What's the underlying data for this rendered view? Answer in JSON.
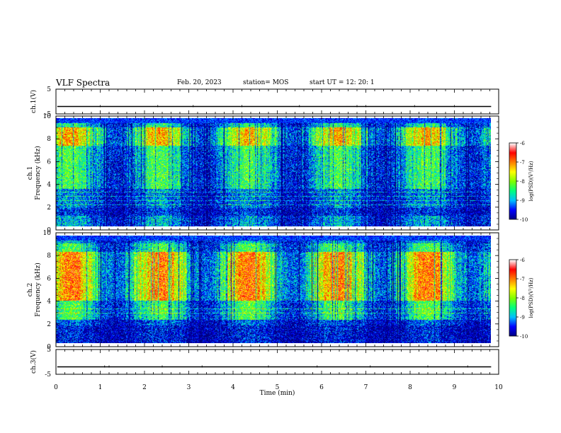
{
  "header": {
    "title": "VLF Spectra",
    "date": "Feb. 20, 2023",
    "station": "station= MOS",
    "start": "start  UT =   12: 20: 1"
  },
  "chart_data": [
    {
      "type": "line",
      "panel": "ch1-voltage",
      "ylabel": "ch.1(V)",
      "ylim": [
        -5,
        5
      ],
      "yticks": [
        5,
        -5
      ],
      "xlim": [
        0,
        10
      ],
      "series": [
        {
          "values_description_level": -2
        }
      ]
    },
    {
      "type": "heatmap",
      "panel": "ch1-spectrogram",
      "ylabel_top": "ch.1",
      "ylabel": "Frequency (kHz)",
      "ylim": [
        0,
        10
      ],
      "yticks": [
        0,
        2,
        4,
        6,
        8,
        10
      ],
      "xlim": [
        0,
        10
      ],
      "data_end_min": 9.83,
      "colorbar": {
        "label": "log(PSD)(V²/Hz)",
        "ticks": [
          -10,
          -9,
          -8,
          -7,
          -6
        ],
        "range": [
          -10,
          -6
        ]
      }
    },
    {
      "type": "heatmap",
      "panel": "ch2-spectrogram",
      "ylabel_top": "ch.2",
      "ylabel": "Frequency (kHz)",
      "ylim": [
        0,
        10
      ],
      "yticks": [
        0,
        2,
        4,
        6,
        8,
        10
      ],
      "xlim": [
        0,
        10
      ],
      "data_end_min": 9.83,
      "colorbar": {
        "label": "log(PSD)(V²/Hz)",
        "ticks": [
          -10,
          -9,
          -8,
          -7,
          -6
        ],
        "range": [
          -10,
          -6
        ]
      }
    },
    {
      "type": "line",
      "panel": "ch3-voltage",
      "ylabel": "ch.3(V)",
      "ylim": [
        -5,
        5
      ],
      "yticks": [
        5,
        -5
      ],
      "xlim": [
        0,
        10
      ],
      "xlabel": "Time  (min)",
      "xticks": [
        0,
        1,
        2,
        3,
        4,
        5,
        6,
        7,
        8,
        9,
        10
      ],
      "series": [
        {
          "values_description_level": -2
        }
      ]
    }
  ],
  "colors": {
    "colormap": [
      "#00007f",
      "#0000ff",
      "#00bfff",
      "#00ff7f",
      "#7fff00",
      "#ffff00",
      "#ff7f00",
      "#ff0000",
      "#ffffff"
    ]
  }
}
